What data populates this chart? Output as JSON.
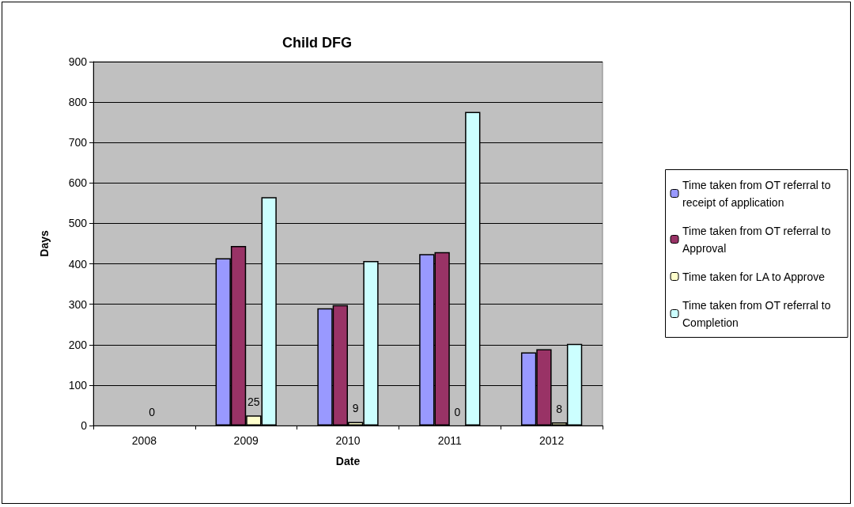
{
  "chart_data": {
    "type": "bar",
    "title": "Child DFG",
    "xlabel": "Date",
    "ylabel": "Days",
    "categories": [
      "2008",
      "2009",
      "2010",
      "2011",
      "2012"
    ],
    "series": [
      {
        "name": "Time taken from OT referral to receipt of application",
        "color": "#9999ff",
        "values": [
          null,
          414,
          290,
          424,
          181
        ]
      },
      {
        "name": "Time taken from OT referral to Approval",
        "color": "#993366",
        "values": [
          null,
          444,
          298,
          429,
          189
        ]
      },
      {
        "name": "Time taken for LA to Approve",
        "color": "#ffffcc",
        "values": [
          0,
          25,
          9,
          0,
          8
        ],
        "value_labels": [
          "0",
          "25",
          "9",
          "0",
          "8"
        ]
      },
      {
        "name": "Time taken from OT referral to Completion",
        "color": "#ccffff",
        "values": [
          null,
          565,
          407,
          776,
          202
        ]
      }
    ],
    "ylim": [
      0,
      900
    ],
    "yticks": [
      0,
      100,
      200,
      300,
      400,
      500,
      600,
      700,
      800,
      900
    ],
    "grid": "y",
    "legend": "right"
  }
}
